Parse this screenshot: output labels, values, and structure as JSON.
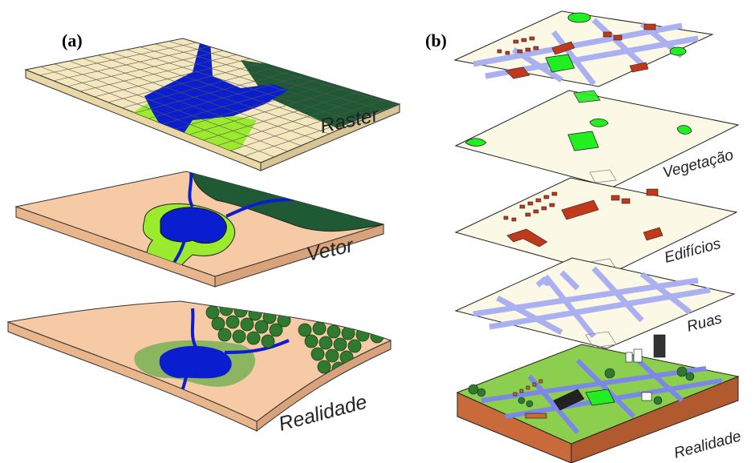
{
  "panel_a": {
    "label": "(a)",
    "layers": {
      "raster": "Raster",
      "vetor": "Vetor",
      "realidade": "Realidade"
    }
  },
  "panel_b": {
    "label": "(b)",
    "layers": {
      "vegetacao": "Vegetação",
      "edificios": "Edifícios",
      "ruas": "Ruas",
      "realidade": "Realidade"
    }
  },
  "colors": {
    "land": "#f5caa5",
    "water": "#0a1ecf",
    "light_green": "#9bea2e",
    "dark_green": "#1f5a34",
    "paper": "#fbf8e6",
    "street": "#aab0f0",
    "building": "#c0391b",
    "vegetation": "#22ee22",
    "soil": "#c86a3a",
    "grass": "#8ccf4e"
  }
}
